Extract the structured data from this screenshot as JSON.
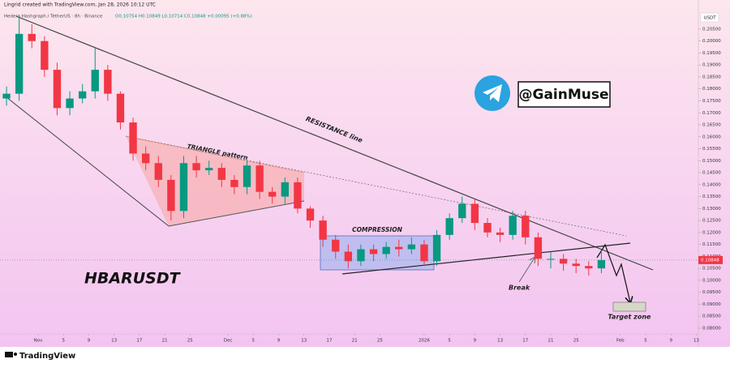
{
  "chart_data": {
    "type": "candlestick",
    "header": "Lingrid created with TradingView.com, Jan 28, 2026 10:12 UTC",
    "symbol_info": "Hedera Hashgraph / TetherUS · 8h · Binance",
    "ohlc_info": "O0.10754 H0.10849 L0.10714 C0.10848 +0.00095 (+0.88%)",
    "currency": "USDT",
    "symbol": "HBARUSDT",
    "handle": "@GainMuse",
    "brand": "TradingView",
    "annotations": {
      "resistance": "RESISTANCE line",
      "triangle": "TRIANGLE pattern",
      "compression": "COMPRESSION",
      "break": "Break",
      "target": "Target zone"
    },
    "up_color": "#089981",
    "down_color": "#f23645",
    "x": [
      -5,
      -3,
      -1,
      1,
      3,
      5,
      7,
      9,
      11,
      13,
      15,
      17,
      19,
      21,
      23,
      25,
      27,
      29,
      31,
      33,
      35,
      37,
      39,
      41,
      43,
      45,
      47,
      49,
      51,
      53,
      55,
      57,
      59,
      61,
      63,
      65,
      67,
      69,
      71,
      73,
      75,
      77,
      79,
      81,
      83,
      85,
      87,
      89
    ],
    "open": [
      0.176,
      0.178,
      0.203,
      0.2,
      0.188,
      0.172,
      0.176,
      0.179,
      0.188,
      0.178,
      0.166,
      0.153,
      0.149,
      0.142,
      0.129,
      0.149,
      0.146,
      0.147,
      0.142,
      0.139,
      0.148,
      0.137,
      0.135,
      0.141,
      0.13,
      0.125,
      0.117,
      0.112,
      0.108,
      0.113,
      0.111,
      0.114,
      0.113,
      0.115,
      0.108,
      0.119,
      0.126,
      0.132,
      0.124,
      0.12,
      0.119,
      0.127,
      0.118,
      0.109,
      0.109,
      0.107,
      0.106,
      0.105
    ],
    "high": [
      0.181,
      0.21,
      0.207,
      0.202,
      0.191,
      0.179,
      0.182,
      0.197,
      0.19,
      0.179,
      0.168,
      0.156,
      0.152,
      0.144,
      0.152,
      0.152,
      0.15,
      0.149,
      0.144,
      0.15,
      0.15,
      0.139,
      0.143,
      0.143,
      0.131,
      0.127,
      0.119,
      0.115,
      0.115,
      0.115,
      0.116,
      0.117,
      0.118,
      0.117,
      0.121,
      0.128,
      0.135,
      0.134,
      0.126,
      0.122,
      0.129,
      0.129,
      0.12,
      0.112,
      0.111,
      0.109,
      0.108,
      0.1125
    ],
    "low": [
      0.173,
      0.175,
      0.197,
      0.185,
      0.169,
      0.169,
      0.174,
      0.176,
      0.175,
      0.163,
      0.15,
      0.146,
      0.139,
      0.125,
      0.126,
      0.143,
      0.144,
      0.139,
      0.136,
      0.136,
      0.134,
      0.132,
      0.132,
      0.128,
      0.122,
      0.114,
      0.109,
      0.105,
      0.106,
      0.108,
      0.109,
      0.11,
      0.111,
      0.106,
      0.106,
      0.117,
      0.124,
      0.121,
      0.118,
      0.116,
      0.117,
      0.115,
      0.106,
      0.105,
      0.104,
      0.103,
      0.102,
      0.103
    ],
    "close": [
      0.178,
      0.203,
      0.2,
      0.188,
      0.172,
      0.176,
      0.179,
      0.188,
      0.178,
      0.166,
      0.153,
      0.149,
      0.142,
      0.129,
      0.149,
      0.146,
      0.147,
      0.142,
      0.139,
      0.148,
      0.137,
      0.135,
      0.141,
      0.13,
      0.125,
      0.117,
      0.112,
      0.108,
      0.113,
      0.111,
      0.114,
      0.113,
      0.115,
      0.108,
      0.119,
      0.126,
      0.132,
      0.124,
      0.12,
      0.119,
      0.127,
      0.118,
      0.109,
      0.109,
      0.107,
      0.106,
      0.105,
      0.1085
    ],
    "last_price": {
      "value": 0.10848,
      "label": "0.10848"
    },
    "xlim": [
      -6.03,
      104.2
    ],
    "xticks": [
      {
        "value": 0,
        "label": "Nov"
      },
      {
        "value": 4,
        "label": "5"
      },
      {
        "value": 8,
        "label": "9"
      },
      {
        "value": 12,
        "label": "13"
      },
      {
        "value": 16,
        "label": "17"
      },
      {
        "value": 20,
        "label": "21"
      },
      {
        "value": 24,
        "label": "25"
      },
      {
        "value": 30,
        "label": "Dec"
      },
      {
        "value": 34,
        "label": "5"
      },
      {
        "value": 38,
        "label": "9"
      },
      {
        "value": 42,
        "label": "13"
      },
      {
        "value": 46,
        "label": "17"
      },
      {
        "value": 50,
        "label": "21"
      },
      {
        "value": 54,
        "label": "25"
      },
      {
        "value": 61,
        "label": "2026"
      },
      {
        "value": 65,
        "label": "5"
      },
      {
        "value": 69,
        "label": "9"
      },
      {
        "value": 73,
        "label": "13"
      },
      {
        "value": 77,
        "label": "17"
      },
      {
        "value": 81,
        "label": "21"
      },
      {
        "value": 85,
        "label": "25"
      },
      {
        "value": 92,
        "label": "Feb"
      },
      {
        "value": 96,
        "label": "5"
      },
      {
        "value": 100,
        "label": "9"
      },
      {
        "value": 104,
        "label": "13"
      }
    ],
    "ylim": [
      0.0783,
      0.2131
    ],
    "yticks": [
      {
        "value": 0.08,
        "label": "0.08000"
      },
      {
        "value": 0.085,
        "label": "0.08500"
      },
      {
        "value": 0.09,
        "label": "0.09000"
      },
      {
        "value": 0.095,
        "label": "0.09500"
      },
      {
        "value": 0.1,
        "label": "0.10000"
      },
      {
        "value": 0.105,
        "label": "0.10500"
      },
      {
        "value": 0.11,
        "label": "0.11000"
      },
      {
        "value": 0.115,
        "label": "0.11500"
      },
      {
        "value": 0.12,
        "label": "0.12000"
      },
      {
        "value": 0.125,
        "label": "0.12500"
      },
      {
        "value": 0.13,
        "label": "0.13000"
      },
      {
        "value": 0.135,
        "label": "0.13500"
      },
      {
        "value": 0.14,
        "label": "0.14000"
      },
      {
        "value": 0.145,
        "label": "0.14500"
      },
      {
        "value": 0.15,
        "label": "0.15000"
      },
      {
        "value": 0.155,
        "label": "0.15500"
      },
      {
        "value": 0.16,
        "label": "0.16000"
      },
      {
        "value": 0.165,
        "label": "0.16500"
      },
      {
        "value": 0.17,
        "label": "0.17000"
      },
      {
        "value": 0.175,
        "label": "0.17500"
      },
      {
        "value": 0.18,
        "label": "0.18000"
      },
      {
        "value": 0.185,
        "label": "0.18500"
      },
      {
        "value": 0.19,
        "label": "0.19000"
      },
      {
        "value": 0.195,
        "label": "0.19500"
      },
      {
        "value": 0.2,
        "label": "0.20000"
      },
      {
        "value": 0.205,
        "label": "0.20500"
      }
    ],
    "grid": false
  }
}
